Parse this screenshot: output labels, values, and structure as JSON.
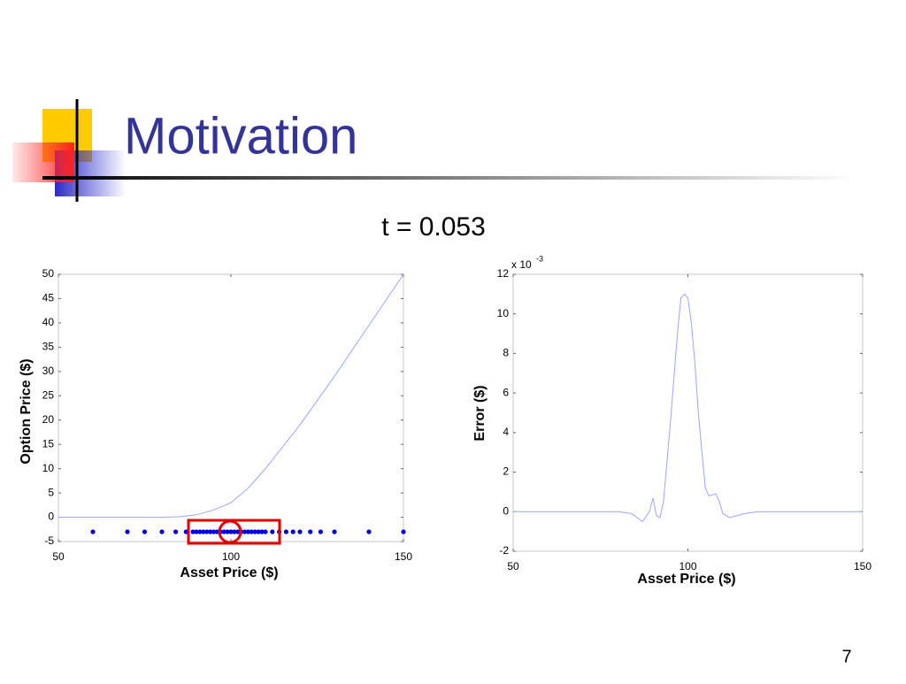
{
  "slide": {
    "title": "Motivation",
    "subtitle": "t = 0.053",
    "page_number": "7"
  },
  "chart_data": [
    {
      "type": "line",
      "xlabel": "Asset Price ($)",
      "ylabel": "Option Price ($)",
      "xlim": [
        50,
        150
      ],
      "xticks": [
        50,
        100,
        150
      ],
      "ylim": [
        -5,
        50
      ],
      "yticks": [
        -5,
        0,
        5,
        10,
        15,
        20,
        25,
        30,
        35,
        40,
        45,
        50
      ],
      "grid": false,
      "series": [
        {
          "type": "line",
          "color": "#9aa6ff",
          "x": [
            50,
            60,
            70,
            80,
            85,
            90,
            95,
            100,
            105,
            110,
            115,
            120,
            130,
            140,
            150
          ],
          "values": [
            0,
            0,
            0,
            0,
            0.1,
            0.5,
            1.5,
            3,
            6,
            10,
            14.5,
            19,
            29,
            39.5,
            50
          ]
        },
        {
          "type": "scatter",
          "color": "#0000dd",
          "x": [
            60,
            70,
            75,
            80,
            84,
            87,
            89,
            90,
            91,
            92,
            93,
            94,
            95,
            96,
            97,
            98,
            99,
            100,
            101,
            102,
            103,
            104,
            105,
            106,
            107,
            108,
            109,
            110,
            112,
            114,
            116,
            118,
            120,
            123,
            126,
            130,
            140,
            150
          ],
          "values": [
            -3,
            -3,
            -3,
            -3,
            -3,
            -3,
            -3,
            -3,
            -3,
            -3,
            -3,
            -3,
            -3,
            -3,
            -3,
            -3,
            -3,
            -3,
            -3,
            -3,
            -3,
            -3,
            -3,
            -3,
            -3,
            -3,
            -3,
            -3,
            -3,
            -3,
            -3,
            -3,
            -3,
            -3,
            -3,
            -3,
            -3,
            -3
          ]
        }
      ]
    },
    {
      "type": "line",
      "xlabel": "Asset Price ($)",
      "ylabel": "Error ($)",
      "y_scale_label": "x 10",
      "y_scale_exponent": "-3",
      "xlim": [
        50,
        150
      ],
      "xticks": [
        50,
        100,
        150
      ],
      "ylim": [
        -2,
        12
      ],
      "yticks": [
        -2,
        0,
        2,
        4,
        6,
        8,
        10,
        12
      ],
      "grid": false,
      "series": [
        {
          "type": "line",
          "color": "#9aa6ff",
          "x": [
            50,
            80,
            84,
            87,
            89,
            90,
            91,
            92,
            93,
            95,
            97,
            98,
            99,
            100,
            101,
            102,
            103,
            104,
            105,
            106,
            108,
            109,
            110,
            112,
            114,
            116,
            120,
            150
          ],
          "values": [
            0,
            0,
            -0.1,
            -0.5,
            0,
            0.7,
            -0.2,
            -0.3,
            0.5,
            4.5,
            9,
            10.8,
            11,
            10.8,
            9.5,
            7.5,
            5,
            3,
            1.2,
            0.8,
            0.9,
            0.5,
            -0.1,
            -0.3,
            -0.2,
            -0.1,
            0,
            0
          ]
        }
      ]
    }
  ]
}
